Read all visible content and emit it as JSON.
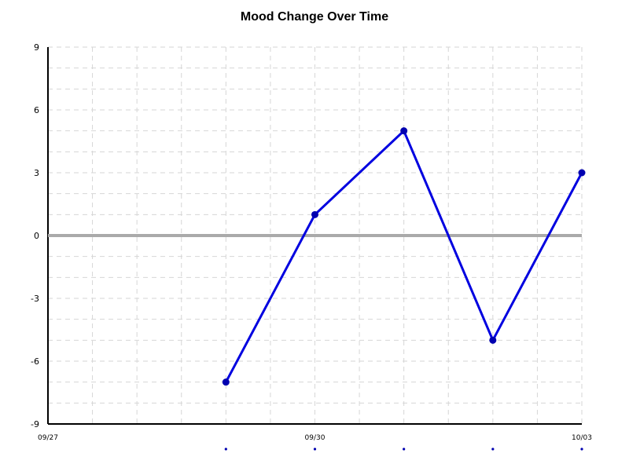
{
  "chart_data": {
    "type": "line",
    "title": "Mood Change Over Time",
    "xlabel": "",
    "ylabel": "",
    "x_ticks": [
      "09/27",
      "09/30",
      "10/03"
    ],
    "xlim": [
      "2023-09-27",
      "2023-10-03"
    ],
    "ylim": [
      -9,
      9
    ],
    "y_ticks": [
      9,
      6,
      3,
      0,
      -3,
      -6,
      -9
    ],
    "series": [
      {
        "color": "#0000e0",
        "x": [
          "2023-09-29",
          "2023-09-30",
          "2023-10-01",
          "2023-10-02",
          "2023-10-03"
        ],
        "y": [
          -7,
          1,
          5,
          -5,
          3
        ]
      }
    ],
    "zero_line_color": "#aaaaaa",
    "grid": true
  }
}
